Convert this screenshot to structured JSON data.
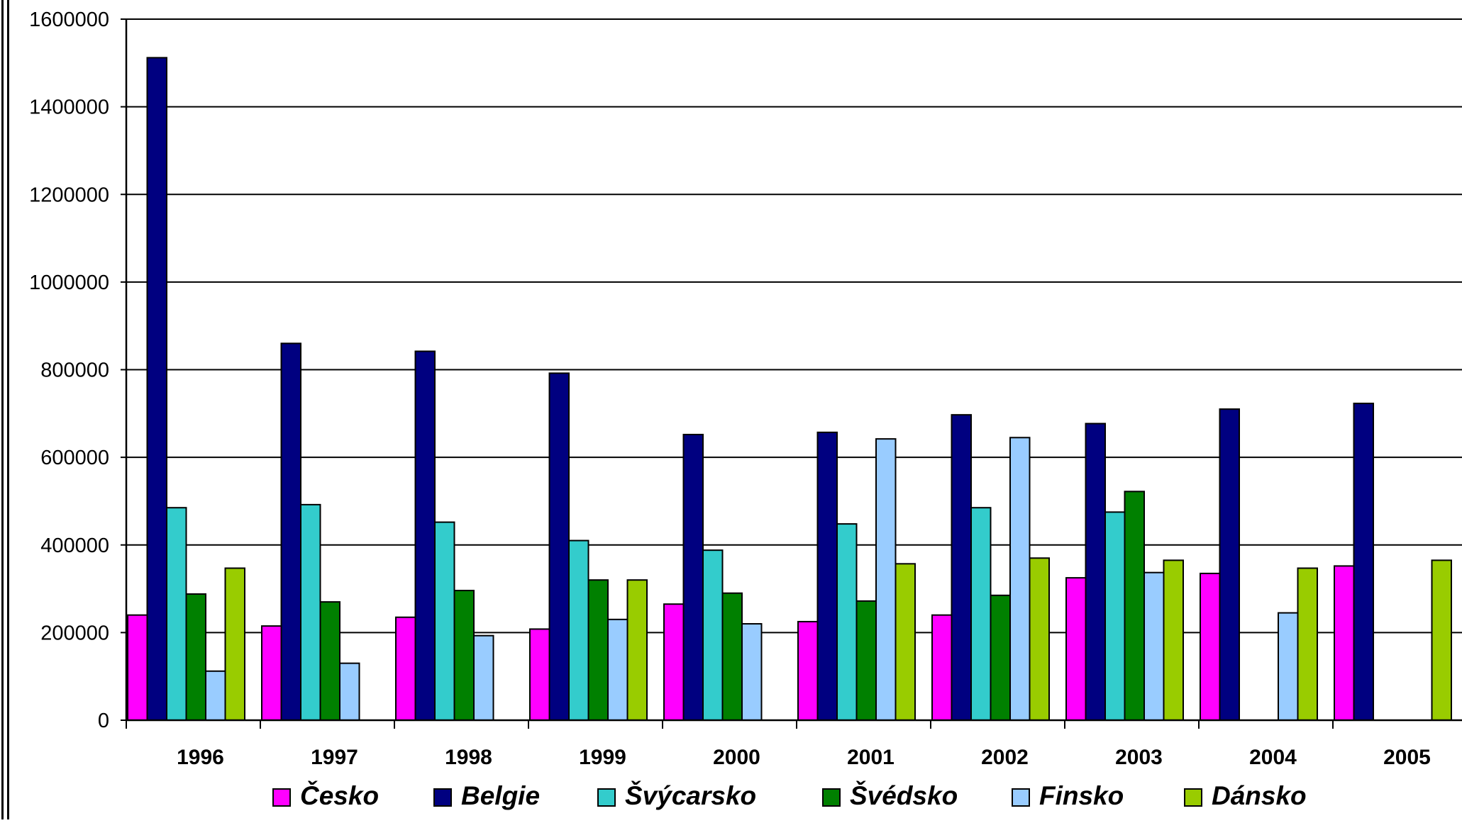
{
  "chart_data": {
    "type": "bar",
    "title": "",
    "xlabel": "",
    "ylabel": "",
    "categories": [
      "1996",
      "1997",
      "1998",
      "1999",
      "2000",
      "2001",
      "2002",
      "2003",
      "2004",
      "2005"
    ],
    "ylim": [
      0,
      1600000
    ],
    "yticks": [
      "0",
      "200000",
      "400000",
      "600000",
      "800000",
      "1000000",
      "1200000",
      "1400000",
      "1600000"
    ],
    "grid": true,
    "legend_position": "bottom",
    "series": [
      {
        "name": "Česko",
        "color": "#ff00ff",
        "values": [
          240000,
          215000,
          235000,
          208000,
          265000,
          225000,
          240000,
          325000,
          335000,
          352000
        ]
      },
      {
        "name": "Belgie",
        "color": "#000080",
        "values": [
          1512000,
          860000,
          842000,
          792000,
          652000,
          657000,
          697000,
          677000,
          710000,
          723000
        ]
      },
      {
        "name": "Švýcarsko",
        "color": "#33cccc",
        "values": [
          485000,
          492000,
          452000,
          410000,
          388000,
          448000,
          485000,
          475000,
          null,
          null
        ]
      },
      {
        "name": "Švédsko",
        "color": "#008000",
        "values": [
          288000,
          270000,
          296000,
          320000,
          290000,
          272000,
          285000,
          522000,
          null,
          null
        ]
      },
      {
        "name": "Finsko",
        "color": "#99ccff",
        "values": [
          112000,
          130000,
          193000,
          230000,
          220000,
          642000,
          645000,
          337000,
          245000,
          null
        ]
      },
      {
        "name": "Dánsko",
        "color": "#99cc00",
        "values": [
          347000,
          null,
          null,
          320000,
          null,
          357000,
          370000,
          365000,
          347000,
          365000
        ]
      }
    ]
  }
}
